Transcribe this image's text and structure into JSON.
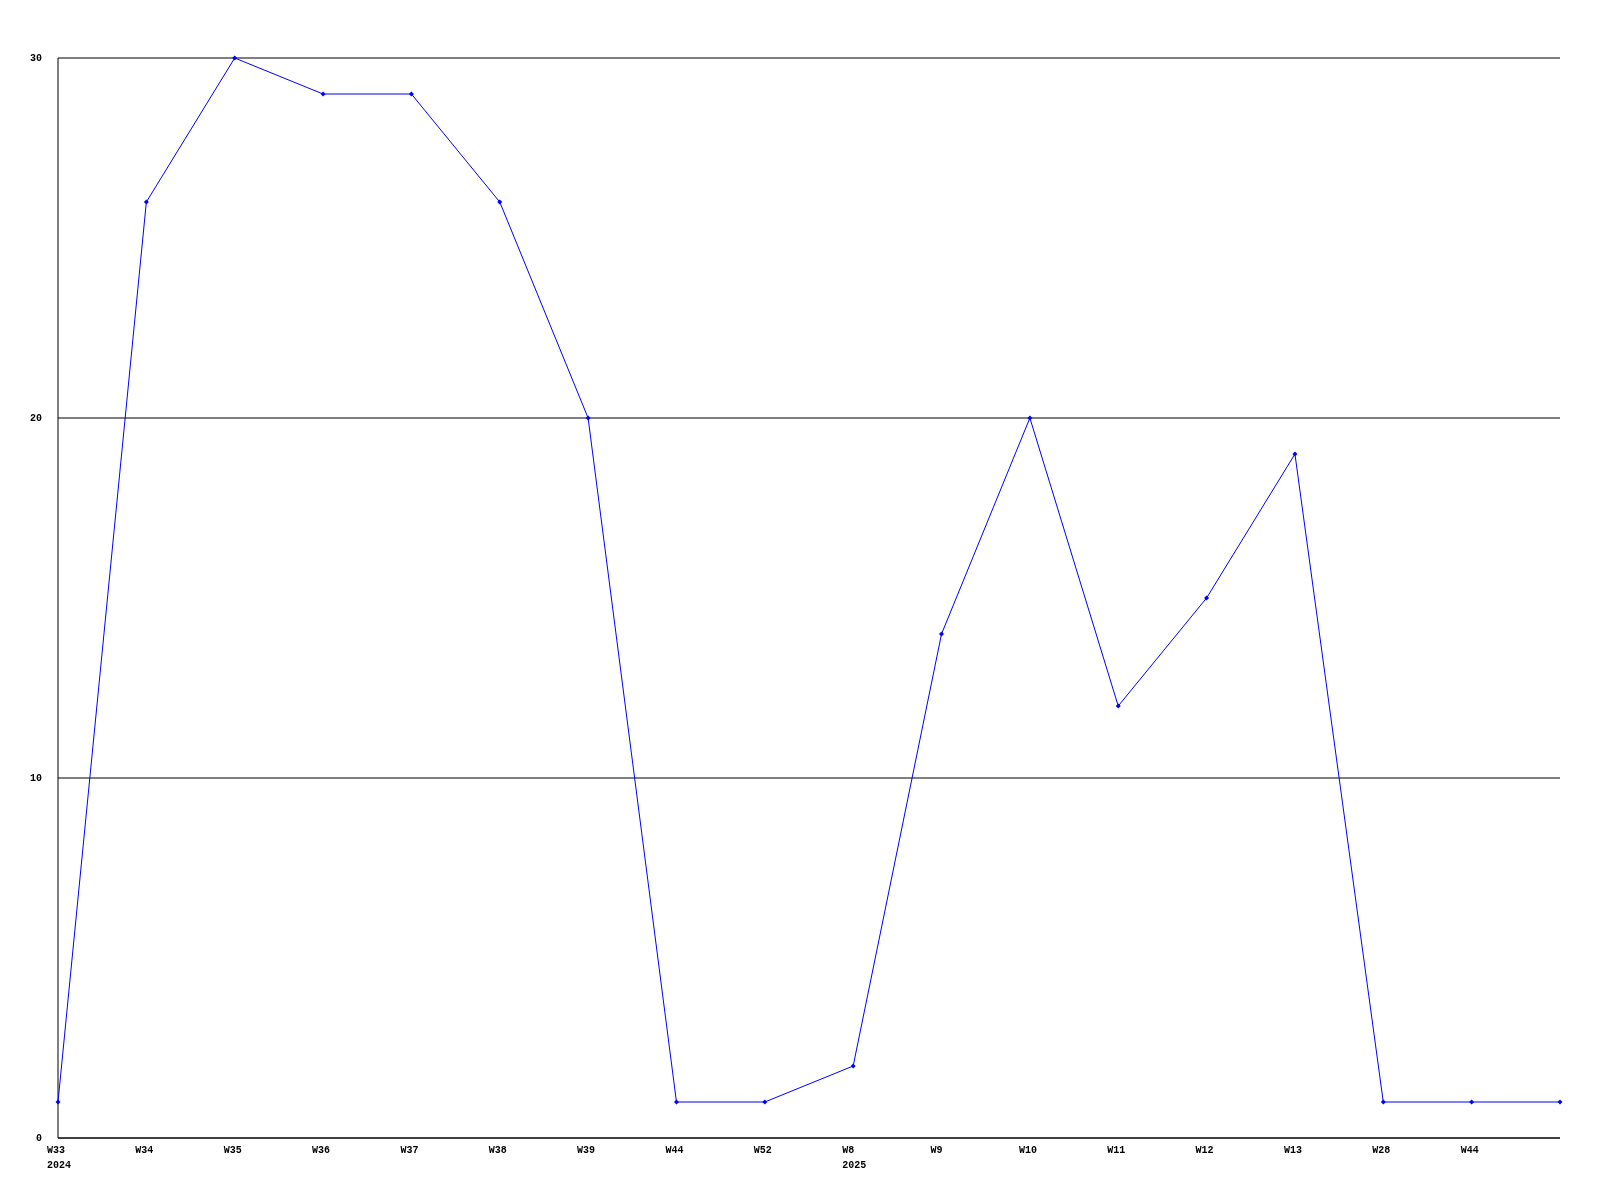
{
  "chart_data": {
    "type": "line",
    "categories": [
      "W33\n2024",
      "W34",
      "W35",
      "W36",
      "W37",
      "W38",
      "W39",
      "W44",
      "W52",
      "W8\n2025",
      "W9",
      "W10",
      "W11",
      "W12",
      "W13",
      "W28",
      "W44",
      null
    ],
    "series": [
      {
        "color": "#0000ff",
        "values": [
          1,
          26,
          30,
          29,
          29,
          26,
          20,
          1,
          1,
          2,
          14,
          20,
          12,
          15,
          19,
          1,
          1,
          1
        ]
      }
    ],
    "ylim": [
      0,
      30
    ],
    "yticks": [
      0,
      10,
      20,
      30
    ],
    "grid": "y",
    "marker": "diamond",
    "line_style": "solid"
  }
}
